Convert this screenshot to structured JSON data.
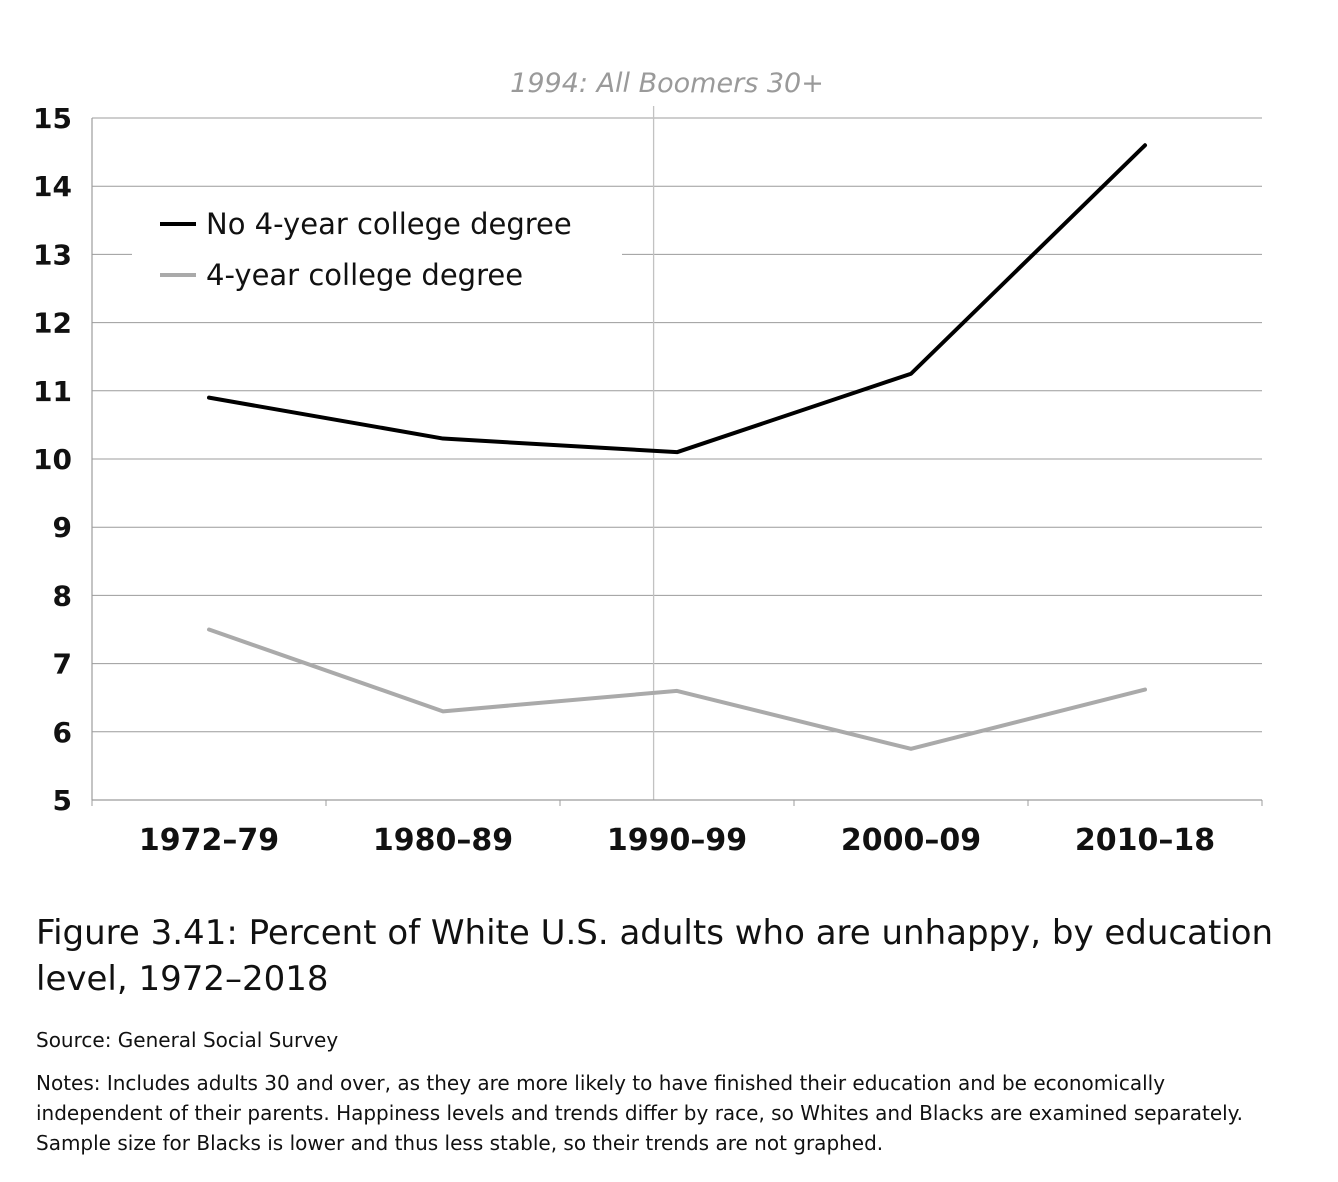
{
  "chart_data": {
    "type": "line",
    "annotation": "1994: All Boomers 30+",
    "annotation_x": 1994,
    "categories": [
      "1972–79",
      "1980–89",
      "1990–99",
      "2000–09",
      "2010–18"
    ],
    "series": [
      {
        "name": "No 4-year college degree",
        "color": "#000000",
        "values": [
          10.9,
          10.3,
          10.1,
          11.25,
          14.6
        ]
      },
      {
        "name": "4-year college degree",
        "color": "#aaaaaa",
        "values": [
          7.5,
          6.3,
          6.6,
          5.75,
          6.62
        ]
      }
    ],
    "yticks": [
      5,
      6,
      7,
      8,
      9,
      10,
      11,
      12,
      13,
      14,
      15
    ],
    "ylim": [
      5,
      15
    ],
    "grid": true,
    "legend_position": "top-left"
  },
  "caption": {
    "title": "Figure 3.41: Percent of White U.S. adults who are unhappy, by education level, 1972–2018",
    "source": "Source: General Social Survey",
    "notes": "Notes: Includes adults 30 and over, as they are more likely to have finished their education and be economically independent of their parents. Happiness levels and trends differ by race, so Whites and Blacks are examined separately. Sample size for Blacks is lower and thus less stable, so their trends are not graphed."
  }
}
